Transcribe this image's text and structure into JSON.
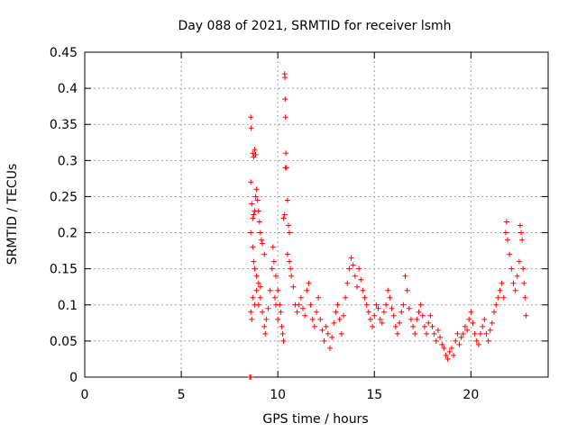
{
  "chart_data": {
    "type": "scatter",
    "title": "Day 088 of 2021, SRMTID for receiver lsmh",
    "xlabel": "GPS time / hours",
    "ylabel": "SRMTID / TECUs",
    "xlim": [
      0,
      24
    ],
    "ylim": [
      0,
      0.45
    ],
    "x_ticks": [
      0,
      5,
      10,
      15,
      20
    ],
    "x_tick_labels": [
      "0",
      "5",
      "10",
      "15",
      "20"
    ],
    "y_ticks": [
      0,
      0.05,
      0.1,
      0.15,
      0.2,
      0.25,
      0.3,
      0.35,
      0.4,
      0.45
    ],
    "y_tick_labels": [
      "0",
      "0.05",
      "0.1",
      "0.15",
      "0.2",
      "0.25",
      "0.3",
      "0.35",
      "0.4",
      "0.45"
    ],
    "grid": true,
    "marker": "plus",
    "color": "#ff0000",
    "series": [
      {
        "name": "SRMTID",
        "points": [
          [
            8.55,
            0.0
          ],
          [
            8.6,
            0.0
          ],
          [
            8.6,
            0.36
          ],
          [
            8.62,
            0.345
          ],
          [
            8.7,
            0.31
          ],
          [
            8.75,
            0.305
          ],
          [
            8.8,
            0.315
          ],
          [
            8.85,
            0.308
          ],
          [
            8.6,
            0.27
          ],
          [
            8.65,
            0.24
          ],
          [
            8.7,
            0.22
          ],
          [
            8.75,
            0.225
          ],
          [
            8.8,
            0.23
          ],
          [
            8.85,
            0.25
          ],
          [
            8.9,
            0.26
          ],
          [
            8.95,
            0.245
          ],
          [
            9.0,
            0.23
          ],
          [
            9.05,
            0.215
          ],
          [
            9.1,
            0.2
          ],
          [
            9.15,
            0.19
          ],
          [
            9.2,
            0.185
          ],
          [
            9.3,
            0.17
          ],
          [
            8.6,
            0.2
          ],
          [
            8.7,
            0.18
          ],
          [
            8.75,
            0.16
          ],
          [
            8.8,
            0.15
          ],
          [
            8.9,
            0.14
          ],
          [
            9.0,
            0.13
          ],
          [
            9.1,
            0.125
          ],
          [
            8.6,
            0.09
          ],
          [
            8.65,
            0.08
          ],
          [
            8.7,
            0.11
          ],
          [
            8.8,
            0.1
          ],
          [
            8.9,
            0.12
          ],
          [
            9.0,
            0.1
          ],
          [
            9.1,
            0.11
          ],
          [
            9.2,
            0.09
          ],
          [
            9.3,
            0.07
          ],
          [
            9.35,
            0.06
          ],
          [
            9.4,
            0.08
          ],
          [
            9.5,
            0.095
          ],
          [
            9.6,
            0.12
          ],
          [
            9.7,
            0.15
          ],
          [
            9.75,
            0.18
          ],
          [
            9.8,
            0.16
          ],
          [
            9.9,
            0.14
          ],
          [
            10.0,
            0.12
          ],
          [
            10.1,
            0.1
          ],
          [
            10.15,
            0.09
          ],
          [
            10.2,
            0.07
          ],
          [
            10.25,
            0.06
          ],
          [
            10.3,
            0.05
          ],
          [
            10.0,
            0.08
          ],
          [
            9.9,
            0.1
          ],
          [
            9.85,
            0.11
          ],
          [
            10.35,
            0.42
          ],
          [
            10.37,
            0.415
          ],
          [
            10.38,
            0.385
          ],
          [
            10.4,
            0.36
          ],
          [
            10.42,
            0.31
          ],
          [
            10.4,
            0.29
          ],
          [
            10.45,
            0.29
          ],
          [
            10.5,
            0.245
          ],
          [
            10.3,
            0.22
          ],
          [
            10.35,
            0.225
          ],
          [
            10.55,
            0.21
          ],
          [
            10.6,
            0.2
          ],
          [
            10.5,
            0.17
          ],
          [
            10.6,
            0.16
          ],
          [
            10.65,
            0.15
          ],
          [
            10.7,
            0.14
          ],
          [
            10.8,
            0.125
          ],
          [
            10.9,
            0.1
          ],
          [
            11.0,
            0.09
          ],
          [
            11.1,
            0.1
          ],
          [
            11.2,
            0.11
          ],
          [
            11.3,
            0.095
          ],
          [
            11.4,
            0.085
          ],
          [
            11.5,
            0.12
          ],
          [
            11.6,
            0.13
          ],
          [
            11.7,
            0.1
          ],
          [
            11.8,
            0.08
          ],
          [
            11.9,
            0.07
          ],
          [
            12.0,
            0.09
          ],
          [
            12.1,
            0.11
          ],
          [
            12.2,
            0.08
          ],
          [
            12.3,
            0.065
          ],
          [
            12.4,
            0.05
          ],
          [
            12.5,
            0.07
          ],
          [
            12.6,
            0.06
          ],
          [
            12.7,
            0.04
          ],
          [
            12.8,
            0.055
          ],
          [
            12.9,
            0.075
          ],
          [
            13.0,
            0.09
          ],
          [
            13.1,
            0.1
          ],
          [
            13.2,
            0.08
          ],
          [
            13.3,
            0.06
          ],
          [
            13.4,
            0.085
          ],
          [
            13.5,
            0.11
          ],
          [
            13.6,
            0.13
          ],
          [
            13.7,
            0.15
          ],
          [
            13.8,
            0.165
          ],
          [
            13.9,
            0.155
          ],
          [
            14.0,
            0.14
          ],
          [
            14.1,
            0.125
          ],
          [
            14.2,
            0.15
          ],
          [
            14.3,
            0.135
          ],
          [
            14.4,
            0.12
          ],
          [
            14.5,
            0.11
          ],
          [
            14.6,
            0.1
          ],
          [
            14.7,
            0.09
          ],
          [
            14.8,
            0.08
          ],
          [
            14.9,
            0.07
          ],
          [
            15.0,
            0.085
          ],
          [
            15.1,
            0.1
          ],
          [
            15.2,
            0.095
          ],
          [
            15.3,
            0.08
          ],
          [
            15.4,
            0.075
          ],
          [
            15.5,
            0.09
          ],
          [
            15.6,
            0.1
          ],
          [
            15.7,
            0.12
          ],
          [
            15.8,
            0.11
          ],
          [
            15.9,
            0.095
          ],
          [
            16.0,
            0.085
          ],
          [
            16.1,
            0.07
          ],
          [
            16.2,
            0.06
          ],
          [
            16.3,
            0.075
          ],
          [
            16.4,
            0.09
          ],
          [
            16.5,
            0.1
          ],
          [
            16.6,
            0.14
          ],
          [
            16.7,
            0.12
          ],
          [
            16.8,
            0.095
          ],
          [
            16.9,
            0.08
          ],
          [
            17.0,
            0.07
          ],
          [
            17.1,
            0.06
          ],
          [
            17.2,
            0.08
          ],
          [
            17.3,
            0.09
          ],
          [
            17.4,
            0.1
          ],
          [
            17.5,
            0.085
          ],
          [
            17.6,
            0.07
          ],
          [
            17.7,
            0.06
          ],
          [
            17.8,
            0.075
          ],
          [
            17.9,
            0.085
          ],
          [
            18.0,
            0.07
          ],
          [
            18.1,
            0.06
          ],
          [
            18.2,
            0.05
          ],
          [
            18.3,
            0.065
          ],
          [
            18.4,
            0.055
          ],
          [
            18.5,
            0.045
          ],
          [
            18.6,
            0.04
          ],
          [
            18.7,
            0.03
          ],
          [
            18.8,
            0.025
          ],
          [
            18.9,
            0.035
          ],
          [
            19.0,
            0.04
          ],
          [
            19.1,
            0.03
          ],
          [
            19.2,
            0.05
          ],
          [
            19.3,
            0.06
          ],
          [
            19.4,
            0.045
          ],
          [
            19.5,
            0.055
          ],
          [
            19.6,
            0.06
          ],
          [
            19.7,
            0.07
          ],
          [
            19.8,
            0.065
          ],
          [
            19.9,
            0.08
          ],
          [
            20.0,
            0.09
          ],
          [
            20.1,
            0.075
          ],
          [
            20.2,
            0.06
          ],
          [
            20.3,
            0.05
          ],
          [
            20.4,
            0.045
          ],
          [
            20.5,
            0.06
          ],
          [
            20.6,
            0.07
          ],
          [
            20.7,
            0.08
          ],
          [
            20.8,
            0.06
          ],
          [
            20.9,
            0.05
          ],
          [
            21.0,
            0.065
          ],
          [
            21.1,
            0.075
          ],
          [
            21.2,
            0.09
          ],
          [
            21.3,
            0.1
          ],
          [
            21.4,
            0.11
          ],
          [
            21.5,
            0.12
          ],
          [
            21.6,
            0.13
          ],
          [
            21.7,
            0.11
          ],
          [
            21.8,
            0.2
          ],
          [
            21.85,
            0.215
          ],
          [
            21.9,
            0.19
          ],
          [
            22.0,
            0.17
          ],
          [
            22.1,
            0.15
          ],
          [
            22.2,
            0.13
          ],
          [
            22.3,
            0.12
          ],
          [
            22.4,
            0.14
          ],
          [
            22.5,
            0.16
          ],
          [
            22.55,
            0.21
          ],
          [
            22.6,
            0.2
          ],
          [
            22.65,
            0.19
          ],
          [
            22.7,
            0.15
          ],
          [
            22.75,
            0.13
          ],
          [
            22.8,
            0.11
          ],
          [
            22.85,
            0.085
          ]
        ]
      }
    ]
  }
}
